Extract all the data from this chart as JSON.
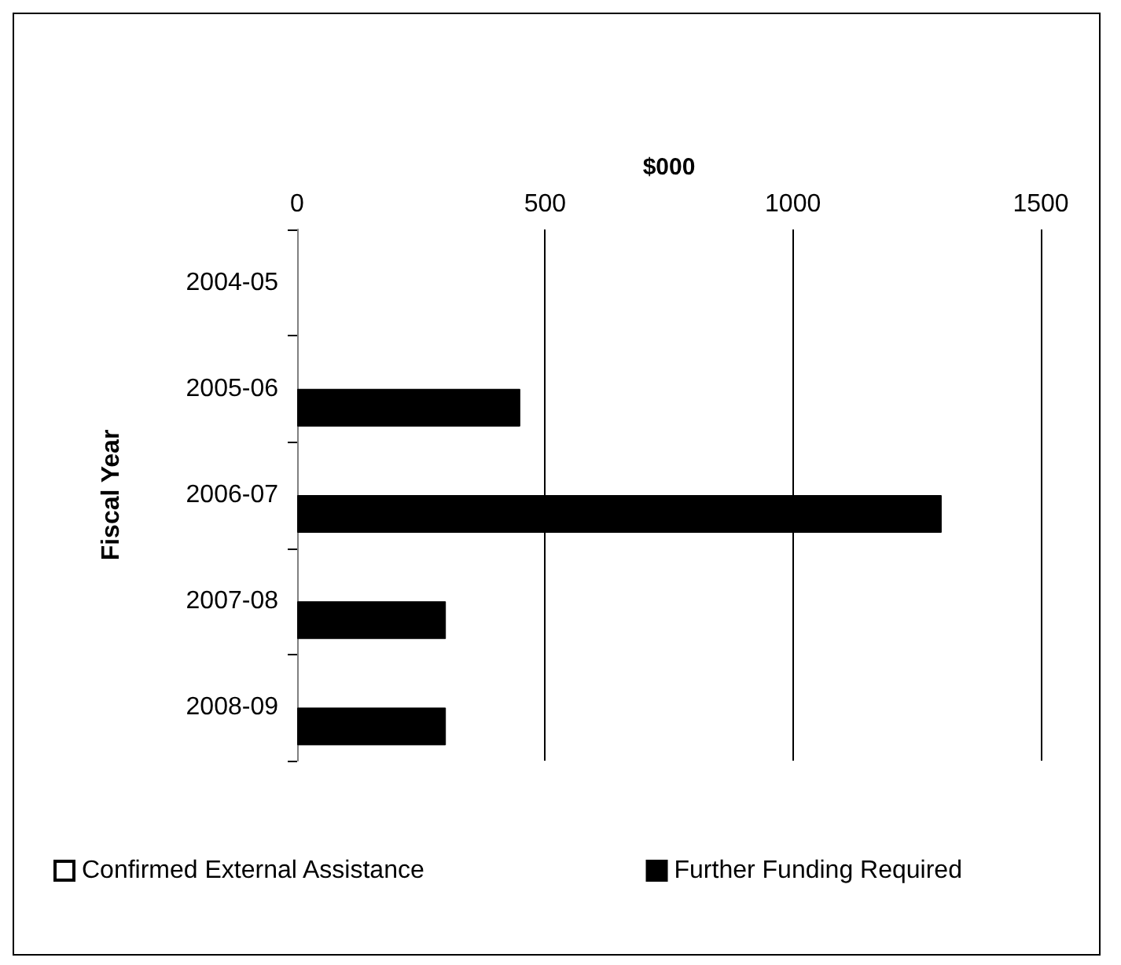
{
  "chart_data": {
    "type": "bar",
    "orientation": "horizontal",
    "xlabel": "$000",
    "ylabel": "Fiscal Year",
    "categories": [
      "2004-05",
      "2005-06",
      "2006-07",
      "2007-08",
      "2008-09"
    ],
    "series": [
      {
        "name": "Confirmed External Assistance",
        "color": "#ffffff",
        "values": [
          null,
          null,
          null,
          null,
          null
        ]
      },
      {
        "name": "Further Funding Required",
        "color": "#000000",
        "values": [
          null,
          450,
          1300,
          300,
          300
        ]
      }
    ],
    "xlim": [
      0,
      1500
    ],
    "xticks": [
      0,
      500,
      1000,
      1500
    ],
    "grid": "x",
    "legend": "bottom"
  }
}
